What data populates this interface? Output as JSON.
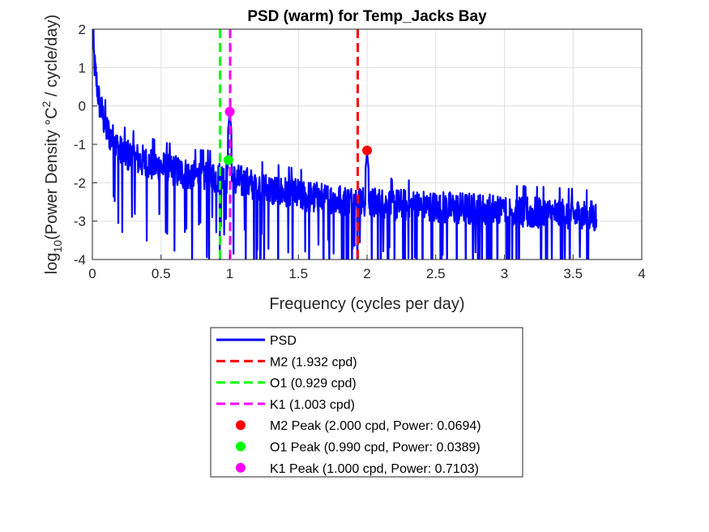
{
  "chart_data": {
    "type": "line",
    "title": "PSD (warm) for Temp_Jacks Bay",
    "xlabel": "Frequency (cycles per day)",
    "ylabel": {
      "prefix": "log",
      "sub": "10",
      "mid": "(Power Density °C",
      "sup": "2",
      "suffix": " / cycle/day)"
    },
    "xlim": [
      0,
      4
    ],
    "ylim": [
      -4,
      2
    ],
    "x_ticks": [
      "0",
      "0.5",
      "1",
      "1.5",
      "2",
      "2.5",
      "3",
      "3.5",
      "4"
    ],
    "y_ticks": [
      "-4",
      "-3",
      "-2",
      "-1",
      "0",
      "1",
      "2"
    ],
    "grid": true,
    "legend_position": "below plot",
    "colors": {
      "psd": "#0000ff",
      "m2": "#ff0000",
      "o1": "#00ff00",
      "k1": "#ff00ff"
    },
    "series": [
      {
        "name": "PSD",
        "style": "line",
        "x_range": [
          0,
          3.67
        ],
        "trend_points": [
          [
            0.0,
            1.8
          ],
          [
            0.02,
            0.9
          ],
          [
            0.05,
            0.1
          ],
          [
            0.1,
            -0.6
          ],
          [
            0.2,
            -1.2
          ],
          [
            0.4,
            -1.5
          ],
          [
            0.7,
            -1.8
          ],
          [
            1.0,
            -1.9
          ],
          [
            1.3,
            -2.2
          ],
          [
            1.6,
            -2.4
          ],
          [
            2.0,
            -2.55
          ],
          [
            2.5,
            -2.65
          ],
          [
            3.0,
            -2.75
          ],
          [
            3.5,
            -2.85
          ],
          [
            3.67,
            -2.9
          ]
        ],
        "peaks": [
          {
            "x": 1.0,
            "y": -0.15
          },
          {
            "x": 2.0,
            "y": -1.2
          },
          {
            "x": 2.99,
            "y": -2.4
          }
        ]
      }
    ],
    "reference_lines": [
      {
        "name": "M2 (1.932 cpd)",
        "x": 1.932,
        "style": "dashed",
        "color_key": "m2"
      },
      {
        "name": "O1 (0.929 cpd)",
        "x": 0.929,
        "style": "dashed",
        "color_key": "o1"
      },
      {
        "name": "K1 (1.003 cpd)",
        "x": 1.003,
        "style": "dashed",
        "color_key": "k1"
      }
    ],
    "peak_markers": [
      {
        "name": "M2 Peak (2.000 cpd, Power: 0.0694)",
        "x": 2.0,
        "power": 0.0694,
        "color_key": "m2"
      },
      {
        "name": "O1 Peak (0.990 cpd, Power: 0.0389)",
        "x": 0.99,
        "power": 0.0389,
        "color_key": "o1"
      },
      {
        "name": "K1 Peak (1.000 cpd, Power: 0.7103)",
        "x": 1.0,
        "power": 0.7103,
        "color_key": "k1"
      }
    ]
  }
}
